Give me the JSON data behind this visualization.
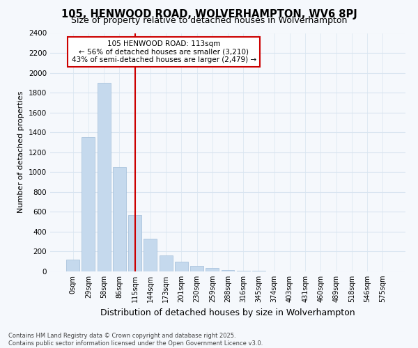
{
  "title": "105, HENWOOD ROAD, WOLVERHAMPTON, WV6 8PJ",
  "subtitle": "Size of property relative to detached houses in Wolverhampton",
  "xlabel": "Distribution of detached houses by size in Wolverhampton",
  "ylabel": "Number of detached properties",
  "categories": [
    "0sqm",
    "29sqm",
    "58sqm",
    "86sqm",
    "115sqm",
    "144sqm",
    "173sqm",
    "201sqm",
    "230sqm",
    "259sqm",
    "288sqm",
    "316sqm",
    "345sqm",
    "374sqm",
    "403sqm",
    "431sqm",
    "460sqm",
    "489sqm",
    "518sqm",
    "546sqm",
    "575sqm"
  ],
  "values": [
    120,
    1350,
    1900,
    1050,
    570,
    330,
    160,
    100,
    55,
    35,
    15,
    10,
    4,
    2,
    1,
    1,
    0,
    0,
    0,
    0,
    0
  ],
  "bar_color": "#c5d9ed",
  "bar_edge_color": "#a0bcd8",
  "vline_x": 4,
  "vline_color": "#cc0000",
  "annotation_title": "105 HENWOOD ROAD: 113sqm",
  "annotation_line1": "← 56% of detached houses are smaller (3,210)",
  "annotation_line2": "43% of semi-detached houses are larger (2,479) →",
  "annotation_box_color": "#ffffff",
  "annotation_border_color": "#cc0000",
  "ylim": [
    0,
    2400
  ],
  "yticks": [
    0,
    200,
    400,
    600,
    800,
    1000,
    1200,
    1400,
    1600,
    1800,
    2000,
    2200,
    2400
  ],
  "background_color": "#f5f8fc",
  "grid_color": "#d8e4f0",
  "footer": "Contains HM Land Registry data © Crown copyright and database right 2025.\nContains public sector information licensed under the Open Government Licence v3.0.",
  "title_fontsize": 10.5,
  "subtitle_fontsize": 9,
  "xlabel_fontsize": 9,
  "ylabel_fontsize": 8,
  "annotation_fontsize": 7.5,
  "footer_fontsize": 6
}
